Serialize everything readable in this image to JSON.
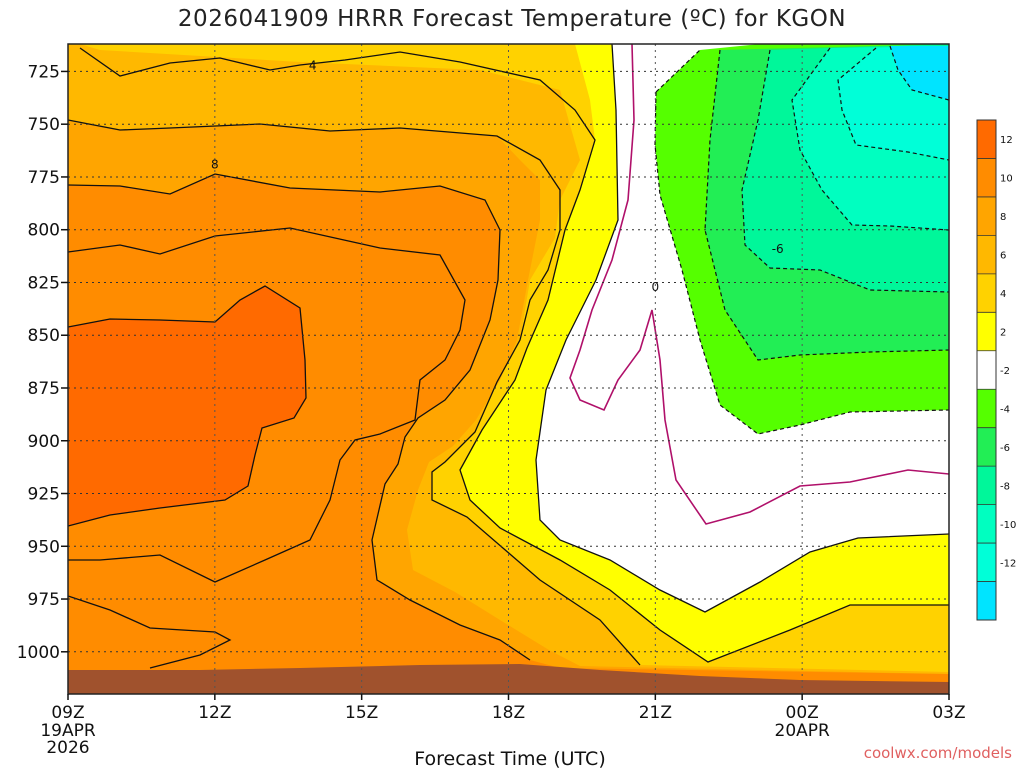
{
  "title": "2026041909 HRRR Forecast Temperature (ºC) for KGON",
  "credit": "coolwx.com/models",
  "colors": {
    "ge12": "#ff6a00",
    "10_12": "#ff8c00",
    "8_10": "#ffa500",
    "6_8": "#ffb800",
    "4_6": "#ffd200",
    "2_4": "#ffff00",
    "m2_2": "#ffffff",
    "m4_m2": "#55ff00",
    "m6_m4": "#22ee55",
    "m8_m6": "#00f79a",
    "m10_m8": "#00ffc0",
    "m12_m10": "#00ffd8",
    "lt_m12": "#00e4ff",
    "terrain": "#a0522d",
    "neg_line": "#111111",
    "zero_line": "#b0106a"
  },
  "chart_data": {
    "type": "heatmap",
    "title": "2026041909 HRRR Forecast Temperature (ºC) for KGON",
    "xlabel": "Forecast Time (UTC)",
    "ylabel": "",
    "x_ticks": [
      {
        "label": "09Z",
        "sub": [
          "19APR",
          "2026"
        ]
      },
      {
        "label": "12Z",
        "sub": []
      },
      {
        "label": "15Z",
        "sub": []
      },
      {
        "label": "18Z",
        "sub": []
      },
      {
        "label": "21Z",
        "sub": []
      },
      {
        "label": "00Z",
        "sub": [
          "20APR"
        ]
      },
      {
        "label": "03Z",
        "sub": []
      }
    ],
    "y_ticks": [
      725,
      750,
      775,
      800,
      825,
      850,
      875,
      900,
      925,
      950,
      975,
      1000
    ],
    "xlim_hours": [
      0,
      18
    ],
    "ylim_mb": [
      712,
      1020
    ],
    "y_inverted": true,
    "grid": true,
    "colorbar_levels": [
      12,
      10,
      8,
      6,
      4,
      2,
      -2,
      -4,
      -6,
      -8,
      -10,
      -12
    ],
    "contour_labels": [
      {
        "text": "4",
        "hour": 5.0,
        "mb": 724
      },
      {
        "text": "8",
        "hour": 3.0,
        "mb": 771
      },
      {
        "text": "0",
        "hour": 12.0,
        "mb": 829
      },
      {
        "text": "-6",
        "hour": 14.5,
        "mb": 811
      }
    ]
  }
}
